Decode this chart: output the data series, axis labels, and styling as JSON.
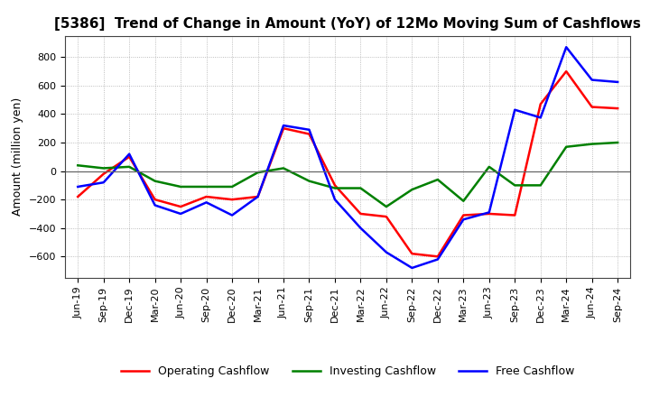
{
  "title": "[5386]  Trend of Change in Amount (YoY) of 12Mo Moving Sum of Cashflows",
  "ylabel": "Amount (million yen)",
  "x_labels": [
    "Jun-19",
    "Sep-19",
    "Dec-19",
    "Mar-20",
    "Jun-20",
    "Sep-20",
    "Dec-20",
    "Mar-21",
    "Jun-21",
    "Sep-21",
    "Dec-21",
    "Mar-22",
    "Jun-22",
    "Sep-22",
    "Dec-22",
    "Mar-23",
    "Jun-23",
    "Sep-23",
    "Dec-23",
    "Mar-24",
    "Jun-24",
    "Sep-24"
  ],
  "operating_cashflow": [
    -180,
    -20,
    100,
    -200,
    -250,
    -180,
    -200,
    -180,
    300,
    260,
    -100,
    -300,
    -320,
    -580,
    -600,
    -310,
    -300,
    -310,
    470,
    700,
    450,
    440
  ],
  "investing_cashflow": [
    40,
    20,
    30,
    -70,
    -110,
    -110,
    -110,
    -10,
    20,
    -70,
    -120,
    -120,
    -250,
    -130,
    -60,
    -210,
    30,
    -100,
    -100,
    170,
    190,
    200
  ],
  "free_cashflow": [
    -110,
    -80,
    120,
    -240,
    -300,
    -220,
    -310,
    -180,
    320,
    290,
    -200,
    -400,
    -570,
    -680,
    -620,
    -340,
    -290,
    430,
    375,
    870,
    640,
    625
  ],
  "operating_color": "#ff0000",
  "investing_color": "#008000",
  "free_color": "#0000ff",
  "background_color": "#ffffff",
  "grid_color": "#aaaaaa",
  "ylim": [
    -750,
    950
  ],
  "yticks": [
    -600,
    -400,
    -200,
    0,
    200,
    400,
    600,
    800
  ],
  "line_width": 1.8,
  "title_fontsize": 11,
  "tick_fontsize": 8,
  "ylabel_fontsize": 9,
  "legend_fontsize": 9
}
